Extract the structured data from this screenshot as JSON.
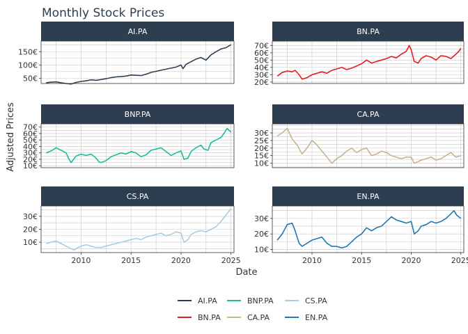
{
  "chart_data": {
    "type": "line",
    "title": "Monthly Stock Prices",
    "xlabel": "Date",
    "ylabel": "Adjusted Prices",
    "xlim": [
      2006.0,
      2025.3
    ],
    "xticks": [
      2010,
      2015,
      2020,
      2025
    ],
    "grid": true,
    "legend_position": "bottom",
    "panels": [
      {
        "name": "AI.PA",
        "color": "#2c3e50",
        "ylim": [
          30,
          190
        ],
        "yticks": [
          50,
          100,
          150
        ],
        "ytick_labels": [
          "50€",
          "100€",
          "150€"
        ],
        "x": [
          2006.5,
          2007,
          2007.5,
          2008,
          2008.5,
          2009,
          2009.5,
          2010,
          2010.5,
          2011,
          2011.5,
          2012,
          2012.5,
          2013,
          2013.5,
          2014,
          2014.5,
          2015,
          2015.5,
          2016,
          2016.5,
          2017,
          2017.5,
          2018,
          2018.5,
          2019,
          2019.5,
          2020,
          2020.2,
          2020.5,
          2021,
          2021.5,
          2022,
          2022.5,
          2023,
          2023.5,
          2024,
          2024.5,
          2024.8,
          2025
        ],
        "values": [
          33,
          35,
          36,
          33,
          30,
          28,
          34,
          38,
          40,
          44,
          42,
          45,
          48,
          52,
          55,
          56,
          58,
          62,
          61,
          60,
          65,
          72,
          76,
          80,
          84,
          88,
          92,
          100,
          86,
          102,
          112,
          122,
          128,
          118,
          138,
          150,
          160,
          165,
          172,
          176
        ]
      },
      {
        "name": "BN.PA",
        "color": "#e41a1c",
        "ylim": [
          18,
          76
        ],
        "yticks": [
          20,
          30,
          40,
          50,
          60,
          70
        ],
        "ytick_labels": [
          "20€",
          "30€",
          "40€",
          "50€",
          "60€",
          "70€"
        ],
        "x": [
          2006.5,
          2007,
          2007.5,
          2008,
          2008.3,
          2008.7,
          2009,
          2009.5,
          2010,
          2010.5,
          2011,
          2011.5,
          2012,
          2012.5,
          2013,
          2013.5,
          2014,
          2014.5,
          2015,
          2015.5,
          2016,
          2016.5,
          2017,
          2017.5,
          2018,
          2018.5,
          2019,
          2019.5,
          2019.8,
          2020,
          2020.3,
          2020.7,
          2021,
          2021.5,
          2022,
          2022.5,
          2023,
          2023.5,
          2024,
          2024.5,
          2024.8,
          2025
        ],
        "values": [
          28,
          33,
          35,
          34,
          36,
          30,
          24,
          26,
          30,
          32,
          34,
          32,
          36,
          38,
          40,
          37,
          39,
          42,
          45,
          50,
          46,
          48,
          50,
          52,
          55,
          53,
          58,
          62,
          70,
          64,
          48,
          46,
          52,
          56,
          54,
          50,
          56,
          55,
          52,
          58,
          62,
          66
        ]
      },
      {
        "name": "BNP.PA",
        "color": "#1abc9c",
        "ylim": [
          7,
          75
        ],
        "yticks": [
          10,
          20,
          30,
          40,
          50,
          60,
          70
        ],
        "ytick_labels": [
          "10€",
          "20€",
          "30€",
          "40€",
          "50€",
          "60€",
          "70€"
        ],
        "x": [
          2006.5,
          2007,
          2007.5,
          2008,
          2008.5,
          2008.8,
          2009,
          2009.5,
          2010,
          2010.5,
          2011,
          2011.5,
          2011.8,
          2012,
          2012.5,
          2013,
          2013.5,
          2014,
          2014.5,
          2015,
          2015.5,
          2016,
          2016.5,
          2017,
          2017.5,
          2018,
          2018.5,
          2019,
          2019.5,
          2020,
          2020.3,
          2020.7,
          2021,
          2021.5,
          2022,
          2022.3,
          2022.7,
          2023,
          2023.5,
          2024,
          2024.3,
          2024.6,
          2025
        ],
        "values": [
          30,
          33,
          38,
          34,
          30,
          20,
          15,
          25,
          28,
          26,
          28,
          22,
          16,
          15,
          18,
          24,
          27,
          30,
          28,
          32,
          30,
          24,
          27,
          34,
          36,
          38,
          32,
          26,
          30,
          33,
          20,
          22,
          32,
          38,
          42,
          36,
          34,
          46,
          50,
          54,
          60,
          68,
          62
        ]
      },
      {
        "name": "CA.PA",
        "color": "#c8b48a",
        "ylim": [
          7,
          36
        ],
        "yticks": [
          10,
          15,
          20,
          25,
          30
        ],
        "ytick_labels": [
          "10€",
          "15€",
          "20€",
          "25€",
          "30€"
        ],
        "x": [
          2006.5,
          2007,
          2007.5,
          2008,
          2008.5,
          2009,
          2009.5,
          2010,
          2010.5,
          2011,
          2011.5,
          2012,
          2012.5,
          2013,
          2013.5,
          2014,
          2014.5,
          2015,
          2015.5,
          2016,
          2016.5,
          2017,
          2017.5,
          2018,
          2018.5,
          2019,
          2019.5,
          2020,
          2020.3,
          2020.7,
          2021,
          2021.5,
          2022,
          2022.5,
          2023,
          2023.5,
          2024,
          2024.5,
          2025
        ],
        "values": [
          28,
          30,
          33,
          26,
          22,
          16,
          20,
          25,
          22,
          18,
          14,
          10,
          13,
          15,
          18,
          20,
          17,
          19,
          20,
          15,
          16,
          18,
          17,
          15,
          14,
          13,
          14,
          14,
          10,
          11,
          12,
          13,
          14,
          12,
          13,
          15,
          17,
          14,
          15
        ]
      },
      {
        "name": "CS.PA",
        "color": "#a6cee3",
        "ylim": [
          2,
          38
        ],
        "yticks": [
          10,
          20,
          30
        ],
        "ytick_labels": [
          "10€",
          "20€",
          "30€"
        ],
        "x": [
          2006.5,
          2007,
          2007.5,
          2008,
          2008.5,
          2009,
          2009.3,
          2009.7,
          2010,
          2010.5,
          2011,
          2011.5,
          2012,
          2012.5,
          2013,
          2013.5,
          2014,
          2014.5,
          2015,
          2015.5,
          2016,
          2016.5,
          2017,
          2017.5,
          2018,
          2018.5,
          2019,
          2019.5,
          2020,
          2020.3,
          2020.7,
          2021,
          2021.5,
          2022,
          2022.5,
          2023,
          2023.5,
          2024,
          2024.5,
          2025
        ],
        "values": [
          9,
          10,
          11,
          9,
          7,
          5,
          4,
          6,
          7,
          8,
          7,
          6,
          6,
          7,
          8,
          9,
          10,
          11,
          12,
          13,
          12,
          14,
          15,
          16,
          17,
          15,
          16,
          18,
          17,
          10,
          12,
          16,
          18,
          19,
          18,
          20,
          22,
          26,
          31,
          36
        ]
      },
      {
        "name": "EN.PA",
        "color": "#1f78b4",
        "ylim": [
          8,
          38
        ],
        "yticks": [
          10,
          20,
          30
        ],
        "ytick_labels": [
          "10€",
          "20€",
          "30€"
        ],
        "x": [
          2006.5,
          2007,
          2007.5,
          2008,
          2008.3,
          2008.7,
          2009,
          2009.5,
          2010,
          2010.5,
          2011,
          2011.5,
          2012,
          2012.5,
          2013,
          2013.5,
          2014,
          2014.5,
          2015,
          2015.5,
          2016,
          2016.5,
          2017,
          2017.5,
          2018,
          2018.5,
          2019,
          2019.5,
          2020,
          2020.3,
          2020.7,
          2021,
          2021.5,
          2022,
          2022.5,
          2023,
          2023.5,
          2024,
          2024.3,
          2024.6,
          2025
        ],
        "values": [
          16,
          20,
          26,
          27,
          22,
          14,
          12,
          14,
          16,
          17,
          18,
          14,
          12,
          12,
          11,
          12,
          15,
          18,
          20,
          24,
          22,
          24,
          25,
          28,
          31,
          29,
          28,
          27,
          28,
          20,
          22,
          25,
          26,
          28,
          27,
          28,
          30,
          33,
          35,
          32,
          30
        ]
      }
    ],
    "legend": {
      "entries": [
        {
          "name": "AI.PA",
          "color": "#2c3e50"
        },
        {
          "name": "BNP.PA",
          "color": "#1abc9c"
        },
        {
          "name": "CS.PA",
          "color": "#a6cee3"
        },
        {
          "name": "BN.PA",
          "color": "#e41a1c"
        },
        {
          "name": "CA.PA",
          "color": "#c8b48a"
        },
        {
          "name": "EN.PA",
          "color": "#1f78b4"
        }
      ]
    }
  }
}
